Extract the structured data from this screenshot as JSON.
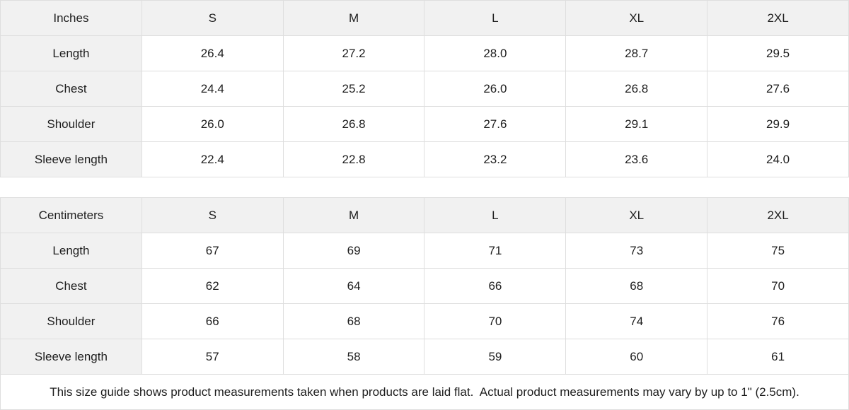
{
  "tables": [
    {
      "unit_label": "Inches",
      "sizes": [
        "S",
        "M",
        "L",
        "XL",
        "2XL"
      ],
      "rows": [
        {
          "label": "Length",
          "values": [
            "26.4",
            "27.2",
            "28.0",
            "28.7",
            "29.5"
          ]
        },
        {
          "label": "Chest",
          "values": [
            "24.4",
            "25.2",
            "26.0",
            "26.8",
            "27.6"
          ]
        },
        {
          "label": "Shoulder",
          "values": [
            "26.0",
            "26.8",
            "27.6",
            "29.1",
            "29.9"
          ]
        },
        {
          "label": "Sleeve length",
          "values": [
            "22.4",
            "22.8",
            "23.2",
            "23.6",
            "24.0"
          ]
        }
      ]
    },
    {
      "unit_label": "Centimeters",
      "sizes": [
        "S",
        "M",
        "L",
        "XL",
        "2XL"
      ],
      "rows": [
        {
          "label": "Length",
          "values": [
            "67",
            "69",
            "71",
            "73",
            "75"
          ]
        },
        {
          "label": "Chest",
          "values": [
            "62",
            "64",
            "66",
            "68",
            "70"
          ]
        },
        {
          "label": "Shoulder",
          "values": [
            "66",
            "68",
            "70",
            "74",
            "76"
          ]
        },
        {
          "label": "Sleeve length",
          "values": [
            "57",
            "58",
            "59",
            "60",
            "61"
          ]
        }
      ]
    }
  ],
  "footer": {
    "note": "This size guide shows product measurements taken when products are laid flat.  Actual product measurements may vary by up to 1\" (2.5cm)."
  },
  "colors": {
    "header_bg": "#f1f1f1",
    "border": "#dedede",
    "text": "#1e1e1e",
    "cell_bg": "#ffffff"
  }
}
